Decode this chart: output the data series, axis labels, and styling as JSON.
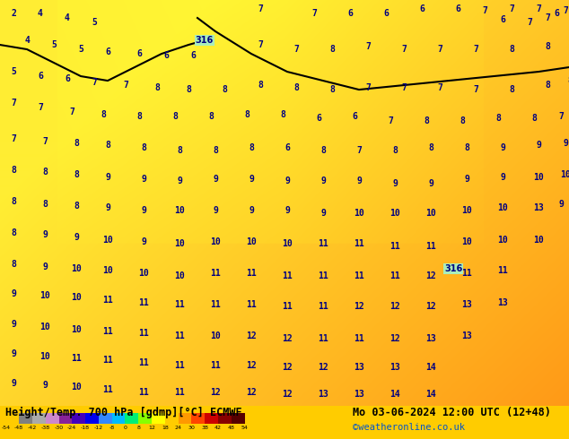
{
  "title_left": "Height/Temp. 700 hPa [gdmp][°C] ECMWF",
  "title_right": "Mo 03-06-2024 12:00 UTC (12+48)",
  "subtitle_right": "©weatheronline.co.uk",
  "colorbar_values": [
    -54,
    -48,
    -42,
    -38,
    -30,
    -24,
    -18,
    -12,
    -8,
    0,
    8,
    12,
    18,
    24,
    30,
    38,
    42,
    48,
    54
  ],
  "colorbar_tick_labels": [
    "-54",
    "-48",
    "-42",
    "-38",
    "-30",
    "-24",
    "-18",
    "-12",
    "-8",
    "0",
    "8",
    "12",
    "18",
    "24",
    "30",
    "38",
    "42",
    "48",
    "54"
  ],
  "colorbar_colors": [
    "#606060",
    "#888888",
    "#aaaaaa",
    "#cc88cc",
    "#aa44aa",
    "#6600cc",
    "#0000ff",
    "#0066ff",
    "#00ccff",
    "#00ff88",
    "#88ff00",
    "#ffff00",
    "#ffcc00",
    "#ff8800",
    "#ff4400",
    "#cc0000",
    "#880000",
    "#660000"
  ],
  "background_main": "#ffdd00",
  "background_orange": "#ffaa00",
  "fig_width": 6.34,
  "fig_height": 4.9,
  "dpi": 100,
  "map_bg_yellow": "#ffee44",
  "map_bg_orange": "#ffaa22",
  "bottom_bar_height": 0.075,
  "bottom_bg": "#ffcc00"
}
